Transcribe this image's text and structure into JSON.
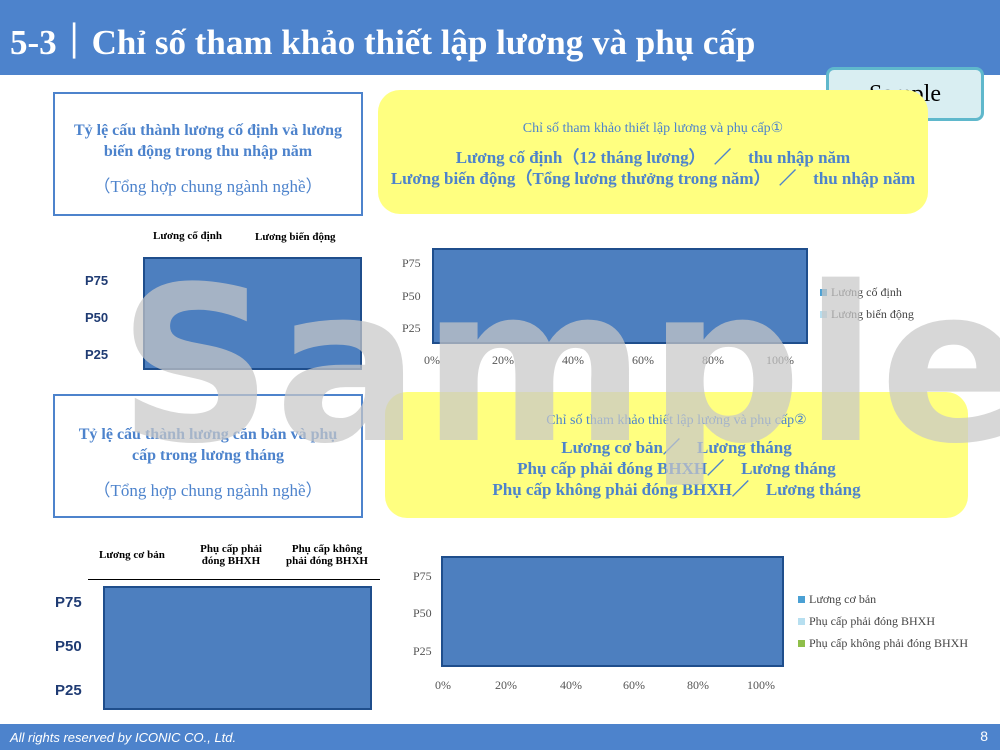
{
  "header": {
    "title": "5-3｜Chỉ số tham khảo thiết lập lương và phụ cấp"
  },
  "sample_badge": "Sample",
  "watermark": "Sample",
  "box1": {
    "line1": "Tỷ lệ cấu thành lương cố định và lương",
    "line2": "biến động trong thu nhập năm",
    "sub": "（Tổng hợp chung ngành nghề）"
  },
  "yellow1": {
    "caption": "Chỉ số tham khảo thiết lập lương và phụ cấp①",
    "line1": "Lương cố định（12 tháng lương）　／　thu nhập năm",
    "line2": "Lương biến động（Tổng lương thưởng trong năm）　／　thu nhập năm"
  },
  "table1": {
    "col1": "Lương cố định",
    "col2": "Lương biến động",
    "rows": [
      "P75",
      "P50",
      "P25"
    ]
  },
  "chart1": {
    "type": "bar",
    "orientation": "horizontal",
    "categories": [
      "P75",
      "P50",
      "P25"
    ],
    "x_ticks": [
      "0%",
      "20%",
      "40%",
      "60%",
      "80%",
      "100%"
    ],
    "xlim": [
      0,
      100
    ],
    "legend": [
      "Lương cố định",
      "Lương biến động"
    ],
    "legend_colors": [
      "#4aa0d4",
      "#b7dff0"
    ]
  },
  "box2": {
    "line1": "Tỷ lệ cấu thành lương căn bản và phụ",
    "line2": "cấp trong lương tháng",
    "sub": "（Tổng hợp chung ngành nghề）"
  },
  "yellow2": {
    "caption": "Chỉ số tham khảo thiết lập lương và phụ cấp②",
    "line1": "Lương cơ bản／　Lương tháng",
    "line2": "Phụ cấp phải đóng BHXH／　Lương tháng",
    "line3": "Phụ cấp không phải đóng BHXH／　Lương tháng"
  },
  "table2": {
    "col1": "Lương cơ bản",
    "col2a": "Phụ cấp phải",
    "col2b": "đóng BHXH",
    "col3a": "Phụ cấp không",
    "col3b": "phải đóng BHXH",
    "rows": [
      "P75",
      "P50",
      "P25"
    ]
  },
  "chart2": {
    "type": "bar",
    "orientation": "horizontal",
    "categories": [
      "P75",
      "P50",
      "P25"
    ],
    "x_ticks": [
      "0%",
      "20%",
      "40%",
      "60%",
      "80%",
      "100%"
    ],
    "xlim": [
      0,
      100
    ],
    "legend": [
      "Lương cơ bản",
      "Phụ cấp phải đóng BHXH",
      "Phụ cấp không phải đóng BHXH"
    ],
    "legend_colors": [
      "#4aa0d4",
      "#b7dff0",
      "#8fbf4a"
    ]
  },
  "footer": {
    "text": "All rights reserved by ICONIC CO., Ltd.",
    "page": "8"
  }
}
